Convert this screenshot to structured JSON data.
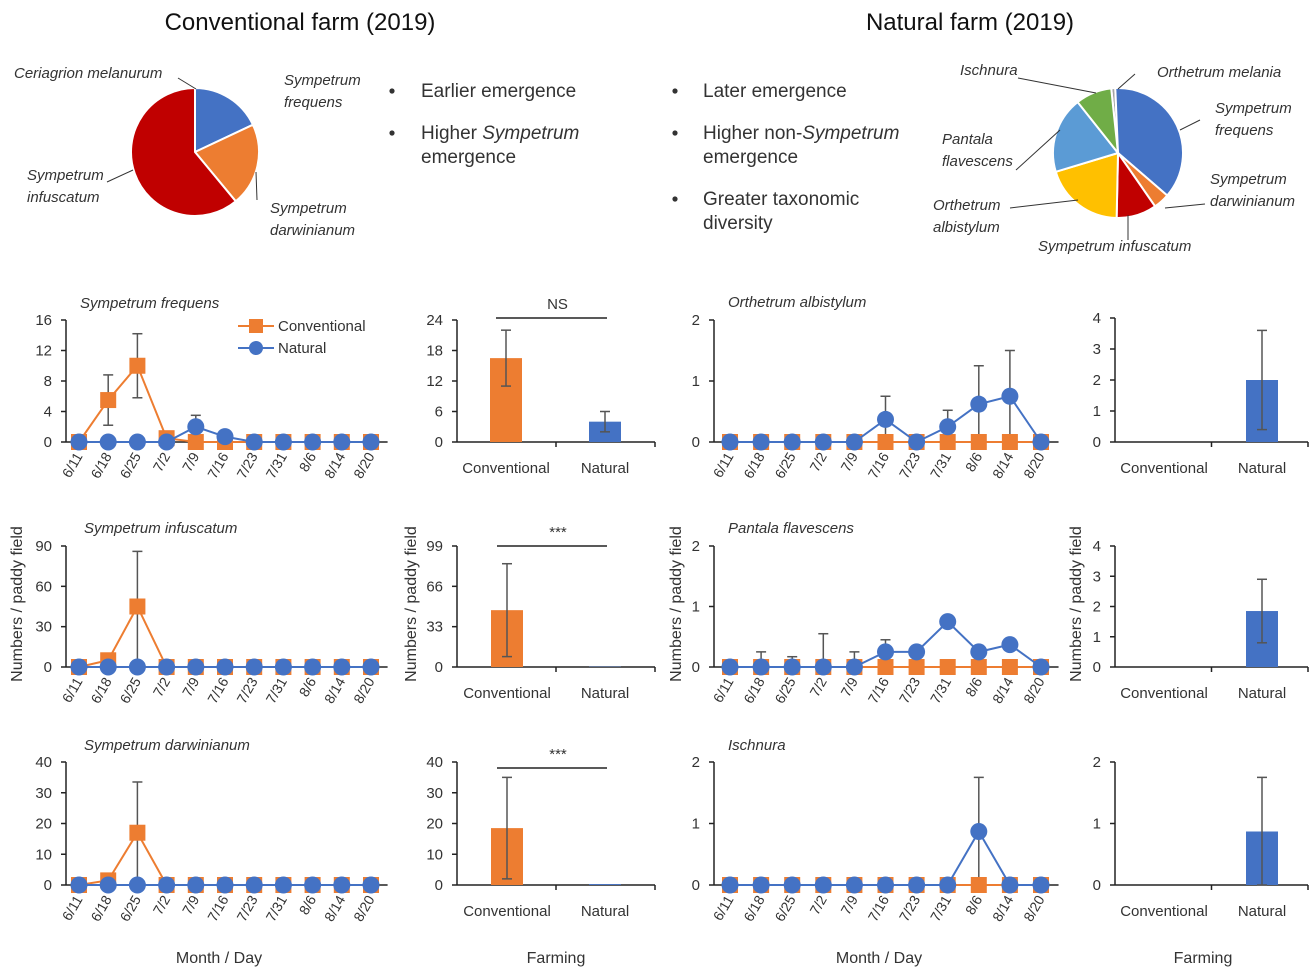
{
  "titles": {
    "conventional": "Conventional farm (2019)",
    "natural": "Natural farm (2019)"
  },
  "bullets": {
    "conventional": [
      {
        "lines": [
          [
            "Earlier emergence"
          ]
        ]
      },
      {
        "lines": [
          [
            "Higher ",
            {
              "i": "Sympetrum"
            }
          ],
          [
            "emergence"
          ]
        ]
      }
    ],
    "natural": [
      {
        "lines": [
          [
            "Later emergence"
          ]
        ]
      },
      {
        "lines": [
          [
            "Higher non-",
            {
              "i": "Sympetrum"
            }
          ],
          [
            "emergence"
          ]
        ]
      },
      {
        "lines": [
          [
            "Greater taxonomic"
          ],
          [
            "diversity"
          ]
        ]
      }
    ]
  },
  "colors": {
    "conventional": "#ED7D31",
    "natural": "#4472C4",
    "red": "#C00000",
    "yellow": "#FFC000",
    "lightblue": "#5B9BD5",
    "green": "#70AD47",
    "errorbar": "#555555"
  },
  "axis_labels": {
    "month_day": "Month / Day",
    "farming": "Farming",
    "numbers": "Numbers / paddy field"
  },
  "legend": {
    "conventional": "Conventional",
    "natural": "Natural"
  },
  "chart_data": [
    {
      "id": "pie-conventional",
      "type": "pie",
      "title": "",
      "slices": [
        {
          "label": "Sympetrum frequens",
          "value": 18,
          "color": "#4472C4"
        },
        {
          "label": "Sympetrum darwinianum",
          "value": 21,
          "color": "#ED7D31"
        },
        {
          "label": "Sympetrum infuscatum",
          "value": 61,
          "color": "#C00000"
        }
      ],
      "extra_labels": [
        "Ceriagrion melanurum"
      ]
    },
    {
      "id": "pie-natural",
      "type": "pie",
      "title": "",
      "slices": [
        {
          "label": "Orthetrum melania",
          "value": 1,
          "color": "#A5A5A5"
        },
        {
          "label": "Sympetrum frequens",
          "value": 37,
          "color": "#4472C4"
        },
        {
          "label": "Sympetrum darwinianum",
          "value": 4,
          "color": "#ED7D31"
        },
        {
          "label": "Sympetrum infuscatum",
          "value": 10,
          "color": "#C00000"
        },
        {
          "label": "Orthetrum albistylum",
          "value": 20,
          "color": "#FFC000"
        },
        {
          "label": "Pantala flavescens",
          "value": 19,
          "color": "#5B9BD5"
        },
        {
          "label": "Ischnura",
          "value": 9,
          "color": "#70AD47"
        }
      ]
    },
    {
      "id": "line-s-frequens",
      "type": "line",
      "title": "Sympetrum frequens",
      "x": [
        "6/11",
        "6/18",
        "6/25",
        "7/2",
        "7/9",
        "7/16",
        "7/23",
        "7/31",
        "8/6",
        "8/14",
        "8/20"
      ],
      "yticks": [
        0,
        4,
        8,
        12,
        16
      ],
      "ylim": [
        0,
        16
      ],
      "series": [
        {
          "name": "Conventional",
          "values": [
            0,
            5.5,
            10,
            0.5,
            0,
            0,
            0,
            0,
            0,
            0,
            0
          ],
          "err": [
            0,
            3.3,
            4.2,
            0,
            0,
            0,
            0,
            0,
            0,
            0,
            0
          ]
        },
        {
          "name": "Natural",
          "values": [
            0,
            0,
            0,
            0,
            2,
            0.7,
            0,
            0,
            0,
            0,
            0
          ],
          "err": [
            0,
            0,
            0,
            0,
            1.5,
            0,
            0,
            0,
            0,
            0,
            0
          ]
        }
      ]
    },
    {
      "id": "bar-s-frequens",
      "type": "bar",
      "title": "",
      "categories": [
        "Conventional",
        "Natural"
      ],
      "values": [
        16.5,
        4
      ],
      "err": [
        5.5,
        2
      ],
      "yticks": [
        0,
        6,
        12,
        18,
        24
      ],
      "ylim": [
        0,
        24
      ],
      "sig": "NS"
    },
    {
      "id": "line-o-albistylum",
      "type": "line",
      "title": "Orthetrum albistylum",
      "x": [
        "6/11",
        "6/18",
        "6/25",
        "7/2",
        "7/9",
        "7/16",
        "7/23",
        "7/31",
        "8/6",
        "8/14",
        "8/20"
      ],
      "yticks": [
        0,
        1,
        2
      ],
      "ylim": [
        0,
        2
      ],
      "series": [
        {
          "name": "Conventional",
          "values": [
            0,
            0,
            0,
            0,
            0,
            0,
            0,
            0,
            0,
            0,
            0
          ],
          "err": [
            0,
            0,
            0,
            0,
            0,
            0,
            0,
            0,
            0,
            0,
            0
          ]
        },
        {
          "name": "Natural",
          "values": [
            0,
            0,
            0,
            0,
            0,
            0.37,
            0,
            0.25,
            0.62,
            0.75,
            0
          ],
          "err": [
            0,
            0,
            0,
            0,
            0,
            0.38,
            0,
            0.27,
            0.63,
            0.75,
            0
          ]
        }
      ]
    },
    {
      "id": "bar-o-albistylum",
      "type": "bar",
      "title": "",
      "categories": [
        "Conventional",
        "Natural"
      ],
      "values": [
        0,
        2
      ],
      "err": [
        0,
        1.6
      ],
      "yticks": [
        0,
        1,
        2,
        3,
        4
      ],
      "ylim": [
        0,
        4
      ],
      "sig": ""
    },
    {
      "id": "line-s-infuscatum",
      "type": "line",
      "title": "Sympetrum infuscatum",
      "x": [
        "6/11",
        "6/18",
        "6/25",
        "7/2",
        "7/9",
        "7/16",
        "7/23",
        "7/31",
        "8/6",
        "8/14",
        "8/20"
      ],
      "yticks": [
        0,
        30,
        60,
        90
      ],
      "ylim": [
        0,
        90
      ],
      "series": [
        {
          "name": "Conventional",
          "values": [
            0,
            5,
            45,
            0,
            0,
            0,
            0,
            0,
            0,
            0,
            0
          ],
          "err": [
            0,
            0,
            41,
            0,
            0,
            0,
            0,
            0,
            0,
            0,
            0
          ]
        },
        {
          "name": "Natural",
          "values": [
            0,
            0,
            0,
            0,
            0,
            0,
            0,
            0,
            0,
            0,
            0
          ],
          "err": [
            0,
            0,
            0,
            0,
            0,
            0,
            0,
            0,
            0,
            0,
            0
          ]
        }
      ]
    },
    {
      "id": "bar-s-infuscatum",
      "type": "bar",
      "title": "",
      "categories": [
        "Conventional",
        "Natural"
      ],
      "values": [
        46.5,
        0.3
      ],
      "err": [
        38,
        0
      ],
      "yticks": [
        0,
        33,
        66,
        99
      ],
      "ylim": [
        0,
        99
      ],
      "sig": "***"
    },
    {
      "id": "line-p-flavescens",
      "type": "line",
      "title": "Pantala flavescens",
      "x": [
        "6/11",
        "6/18",
        "6/25",
        "7/2",
        "7/9",
        "7/16",
        "7/23",
        "7/31",
        "8/6",
        "8/14",
        "8/20"
      ],
      "yticks": [
        0,
        1,
        2
      ],
      "ylim": [
        0,
        2
      ],
      "series": [
        {
          "name": "Conventional",
          "values": [
            0,
            0,
            0,
            0,
            0,
            0,
            0,
            0,
            0,
            0,
            0
          ],
          "err": [
            0,
            0,
            0,
            0,
            0,
            0,
            0,
            0,
            0,
            0,
            0
          ]
        },
        {
          "name": "Natural",
          "values": [
            0,
            0,
            0,
            0,
            0,
            0.25,
            0.25,
            0.75,
            0.25,
            0.37,
            0
          ],
          "err": [
            0,
            0.25,
            0.17,
            0.55,
            0.25,
            0.2,
            0,
            0,
            0,
            0,
            0
          ]
        }
      ]
    },
    {
      "id": "bar-p-flavescens",
      "type": "bar",
      "title": "",
      "categories": [
        "Conventional",
        "Natural"
      ],
      "values": [
        0,
        1.85
      ],
      "err": [
        0,
        1.05
      ],
      "yticks": [
        0,
        1,
        2,
        3,
        4
      ],
      "ylim": [
        0,
        4
      ],
      "sig": ""
    },
    {
      "id": "line-s-darwinianum",
      "type": "line",
      "title": "Sympetrum darwinianum",
      "x": [
        "6/11",
        "6/18",
        "6/25",
        "7/2",
        "7/9",
        "7/16",
        "7/23",
        "7/31",
        "8/6",
        "8/14",
        "8/20"
      ],
      "yticks": [
        0,
        10,
        20,
        30,
        40
      ],
      "ylim": [
        0,
        40
      ],
      "series": [
        {
          "name": "Conventional",
          "values": [
            0,
            1.5,
            17,
            0,
            0,
            0,
            0,
            0,
            0,
            0,
            0
          ],
          "err": [
            0,
            0,
            16.5,
            0,
            0,
            0,
            0,
            0,
            0,
            0,
            0
          ]
        },
        {
          "name": "Natural",
          "values": [
            0,
            0,
            0,
            0,
            0,
            0,
            0,
            0,
            0,
            0,
            0
          ],
          "err": [
            0,
            0,
            0,
            0,
            0,
            0,
            0,
            0,
            0,
            0,
            0
          ]
        }
      ]
    },
    {
      "id": "bar-s-darwinianum",
      "type": "bar",
      "title": "",
      "categories": [
        "Conventional",
        "Natural"
      ],
      "values": [
        18.5,
        0.3
      ],
      "err": [
        16.5,
        0
      ],
      "yticks": [
        0,
        10,
        20,
        30,
        40
      ],
      "ylim": [
        0,
        40
      ],
      "sig": "***"
    },
    {
      "id": "line-ischnura",
      "type": "line",
      "title": "Ischnura",
      "x": [
        "6/11",
        "6/18",
        "6/25",
        "7/2",
        "7/9",
        "7/16",
        "7/23",
        "7/31",
        "8/6",
        "8/14",
        "8/20"
      ],
      "yticks": [
        0,
        1,
        2
      ],
      "ylim": [
        0,
        2
      ],
      "series": [
        {
          "name": "Conventional",
          "values": [
            0,
            0,
            0,
            0,
            0,
            0,
            0,
            0,
            0,
            0,
            0
          ],
          "err": [
            0,
            0,
            0,
            0,
            0,
            0,
            0,
            0,
            0,
            0,
            0
          ]
        },
        {
          "name": "Natural",
          "values": [
            0,
            0,
            0,
            0,
            0,
            0,
            0,
            0,
            0.87,
            0,
            0
          ],
          "err": [
            0,
            0,
            0,
            0,
            0,
            0,
            0,
            0,
            0.88,
            0,
            0
          ]
        }
      ]
    },
    {
      "id": "bar-ischnura",
      "type": "bar",
      "title": "",
      "categories": [
        "Conventional",
        "Natural"
      ],
      "values": [
        0,
        0.87
      ],
      "err": [
        0,
        0.88
      ],
      "yticks": [
        0,
        1,
        2
      ],
      "ylim": [
        0,
        2
      ],
      "sig": ""
    }
  ]
}
